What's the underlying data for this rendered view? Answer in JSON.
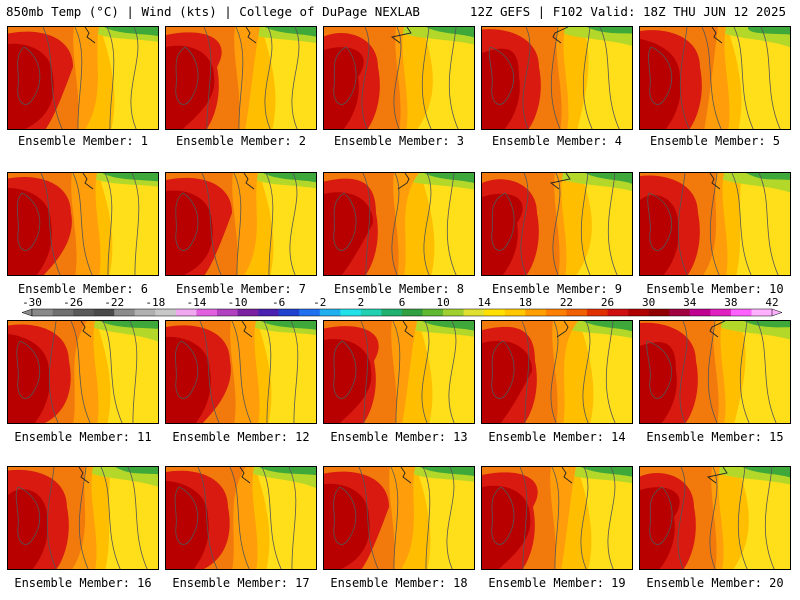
{
  "header": {
    "left": "850mb Temp (°C) | Wind (kts) | College of DuPage NEXLAB",
    "right": "12Z GEFS | F102 Valid: 18Z THU JUN 12 2025"
  },
  "panels": [
    {
      "label": "Ensemble Member: 1"
    },
    {
      "label": "Ensemble Member: 2"
    },
    {
      "label": "Ensemble Member: 3"
    },
    {
      "label": "Ensemble Member: 4"
    },
    {
      "label": "Ensemble Member: 5"
    },
    {
      "label": "Ensemble Member: 6"
    },
    {
      "label": "Ensemble Member: 7"
    },
    {
      "label": "Ensemble Member: 8"
    },
    {
      "label": "Ensemble Member: 9"
    },
    {
      "label": "Ensemble Member: 10"
    },
    {
      "label": "Ensemble Member: 11"
    },
    {
      "label": "Ensemble Member: 12"
    },
    {
      "label": "Ensemble Member: 13"
    },
    {
      "label": "Ensemble Member: 14"
    },
    {
      "label": "Ensemble Member: 15"
    },
    {
      "label": "Ensemble Member: 16"
    },
    {
      "label": "Ensemble Member: 17"
    },
    {
      "label": "Ensemble Member: 18"
    },
    {
      "label": "Ensemble Member: 19"
    },
    {
      "label": "Ensemble Member: 20"
    }
  ],
  "colorbar": {
    "labels": [
      "-30",
      "-26",
      "-22",
      "-18",
      "-14",
      "-10",
      "-6",
      "-2",
      "2",
      "6",
      "10",
      "14",
      "18",
      "22",
      "26",
      "30",
      "34",
      "38",
      "42"
    ],
    "colors": [
      "#8a8a8a",
      "#707070",
      "#5a5a5a",
      "#4a4a4a",
      "#8c8c8c",
      "#b0b0b0",
      "#c8c8c8",
      "#f0a8f0",
      "#e060e0",
      "#b040c0",
      "#7a20a0",
      "#4a20b0",
      "#2040d0",
      "#2070f0",
      "#20b0f0",
      "#20e0e8",
      "#20d0b0",
      "#20b070",
      "#30a040",
      "#60b830",
      "#a0d030",
      "#e0e030",
      "#ffe000",
      "#ffc800",
      "#ffa000",
      "#ff8000",
      "#f06000",
      "#e03000",
      "#d01010",
      "#b00000",
      "#900000",
      "#a00040",
      "#c00090",
      "#e020c0",
      "#ff60ff",
      "#ffb0ff"
    ]
  },
  "colors": {
    "warm_core": "#b80000",
    "hot": "#d81a10",
    "orange": "#f27a0c",
    "light_orange": "#ff9e0a",
    "gold": "#ffbf00",
    "yellow": "#ffde1a",
    "lime": "#b4d82a",
    "green": "#3fa83a",
    "contour": "#555555"
  }
}
